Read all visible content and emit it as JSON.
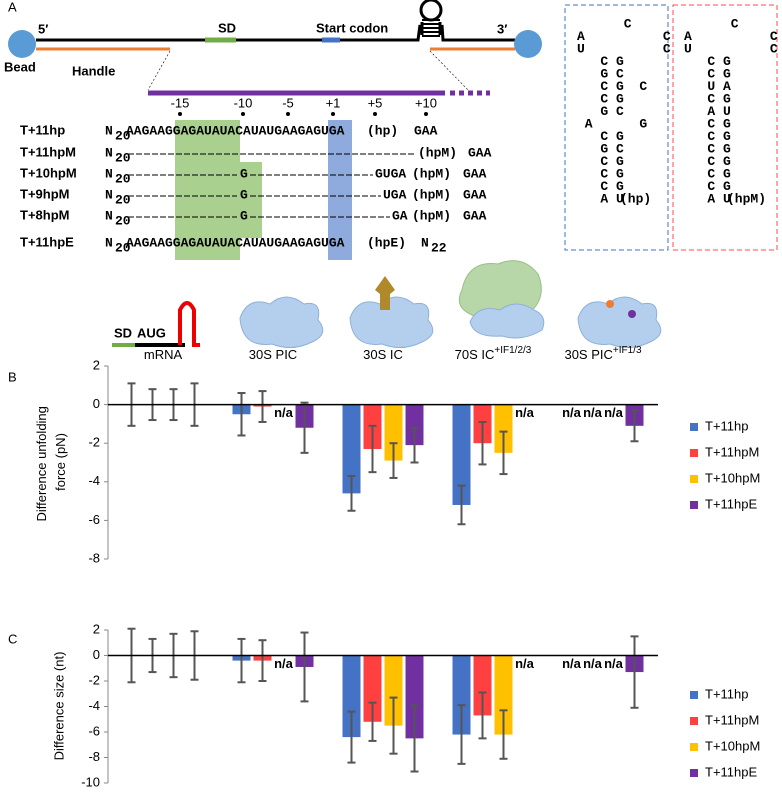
{
  "panel_labels": [
    "A",
    "B",
    "C"
  ],
  "construct": {
    "five_prime": "5′",
    "three_prime": "3′",
    "bead": "Bead",
    "handle": "Handle",
    "sd": "SD",
    "start_codon": "Start codon",
    "positions": [
      "-15",
      "-10",
      "-5",
      "+1",
      "+5",
      "+10"
    ]
  },
  "sequences": [
    {
      "name": "T+11hp",
      "parts": [
        "N",
        "20",
        "AAGAAGGAGAUAUACAUAUGAAGAGUGA",
        "(hp)",
        "GAA"
      ],
      "tag_color": "#4472c4"
    },
    {
      "name": "T+11hpM",
      "parts": [
        "N",
        "20",
        "(hpM)",
        "GAA"
      ],
      "tag_color": "#ff4b4b"
    },
    {
      "name": "T+10hpM",
      "parts": [
        "N",
        "20",
        "G",
        "GUGA",
        "(hpM)",
        "GAA"
      ],
      "tag_color": "#ff4b4b"
    },
    {
      "name": "T+9hpM",
      "parts": [
        "N",
        "20",
        "G",
        "UGA",
        "(hpM)",
        "GAA"
      ],
      "tag_color": "#ff4b4b"
    },
    {
      "name": "T+8hpM",
      "parts": [
        "N",
        "20",
        "G",
        "GA",
        "(hpM)",
        "GAA"
      ],
      "tag_color": "#ff4b4b"
    },
    {
      "name": "T+11hpE",
      "parts": [
        "N",
        "20",
        "AAGAAGGAGAUAUACAUAUGAAGAGUGA",
        "(hpE)",
        "N",
        "22"
      ],
      "tag_color": "#7030a0"
    }
  ],
  "hairpins": [
    {
      "lines": [
        "      C",
        "A          C",
        "U          C",
        "   C G",
        "   G C",
        "   C G  C",
        "   C G",
        "   G C",
        " A      G",
        "   C G",
        "   G C",
        "   C G",
        "   C G",
        "   C G",
        "   A U"
      ],
      "label": "(hp)",
      "color": "#4472c4"
    },
    {
      "lines": [
        "      C",
        "A          C",
        "U          C",
        "   C G",
        "   C G",
        "   U A",
        "   C G",
        "   A U",
        "   C G",
        "   C G",
        "   C G",
        "   C G",
        "   C G",
        "   C G",
        "   A U"
      ],
      "label": "(hpM)",
      "color": "#ff4b4b",
      "highlight_lines": [
        5,
        7
      ]
    }
  ],
  "mrna_icon": {
    "sd": "SD",
    "aug": "AUG"
  },
  "chart_data": [
    {
      "type": "bar",
      "ylabel": "Difference unfolding force (pN)",
      "categories": [
        "mRNA",
        "30S PIC",
        "30S IC",
        "70S IC",
        "30S PIC"
      ],
      "category_superscripts": [
        null,
        null,
        null,
        "+IF1/2/3",
        "+IF1/3"
      ],
      "ylim": [
        -8,
        2
      ],
      "yticks": [
        2,
        0,
        -2,
        -4,
        -6,
        -8
      ],
      "legend": "right",
      "series": [
        {
          "name": "T+11hp",
          "color": "#4472c4",
          "values": [
            0,
            -0.5,
            -4.6,
            -5.2,
            null
          ],
          "errors": [
            1.1,
            1.1,
            0.9,
            1.0,
            null
          ],
          "value_labels": [
            null,
            null,
            null,
            null,
            "n/a"
          ]
        },
        {
          "name": "T+11hpM",
          "color": "#ff4040",
          "values": [
            0,
            -0.1,
            -2.3,
            -2.0,
            null
          ],
          "errors": [
            0.8,
            0.8,
            1.2,
            1.1,
            null
          ],
          "value_labels": [
            null,
            null,
            null,
            null,
            "n/a"
          ]
        },
        {
          "name": "T+10hpM",
          "color": "#ffc000",
          "values": [
            0,
            null,
            -2.9,
            -2.5,
            null
          ],
          "errors": [
            0.8,
            null,
            0.9,
            1.1,
            null
          ],
          "value_labels": [
            null,
            "n/a",
            null,
            null,
            "n/a"
          ]
        },
        {
          "name": "T+11hpE",
          "color": "#7030a0",
          "values": [
            0,
            -1.2,
            -2.1,
            null,
            -1.1
          ],
          "errors": [
            1.1,
            1.3,
            0.9,
            null,
            0.8
          ],
          "value_labels": [
            null,
            null,
            null,
            "n/a",
            null
          ]
        }
      ]
    },
    {
      "type": "bar",
      "ylabel": "Difference size (nt)",
      "ylim": [
        -10,
        2
      ],
      "yticks": [
        2,
        0,
        -2,
        -4,
        -6,
        -8,
        -10
      ],
      "legend": "right",
      "series": [
        {
          "name": "T+11hp",
          "color": "#4472c4",
          "values": [
            0,
            -0.4,
            -6.4,
            -6.2,
            null
          ],
          "errors": [
            2.1,
            1.7,
            2.0,
            2.3,
            null
          ],
          "value_labels": [
            null,
            null,
            null,
            null,
            "n/a"
          ]
        },
        {
          "name": "T+11hpM",
          "color": "#ff4040",
          "values": [
            0,
            -0.4,
            -5.2,
            -4.7,
            null
          ],
          "errors": [
            1.3,
            1.6,
            1.5,
            1.8,
            null
          ],
          "value_labels": [
            null,
            null,
            null,
            null,
            "n/a"
          ]
        },
        {
          "name": "T+10hpM",
          "color": "#ffc000",
          "values": [
            0,
            null,
            -5.5,
            -6.2,
            null
          ],
          "errors": [
            1.7,
            null,
            2.2,
            1.9,
            null
          ],
          "value_labels": [
            null,
            "n/a",
            null,
            null,
            "n/a"
          ]
        },
        {
          "name": "T+11hpE",
          "color": "#7030a0",
          "values": [
            0,
            -0.9,
            -6.5,
            null,
            -1.3
          ],
          "errors": [
            1.9,
            2.7,
            2.6,
            null,
            2.8
          ],
          "value_labels": [
            null,
            null,
            null,
            "n/a",
            null
          ]
        }
      ]
    }
  ]
}
